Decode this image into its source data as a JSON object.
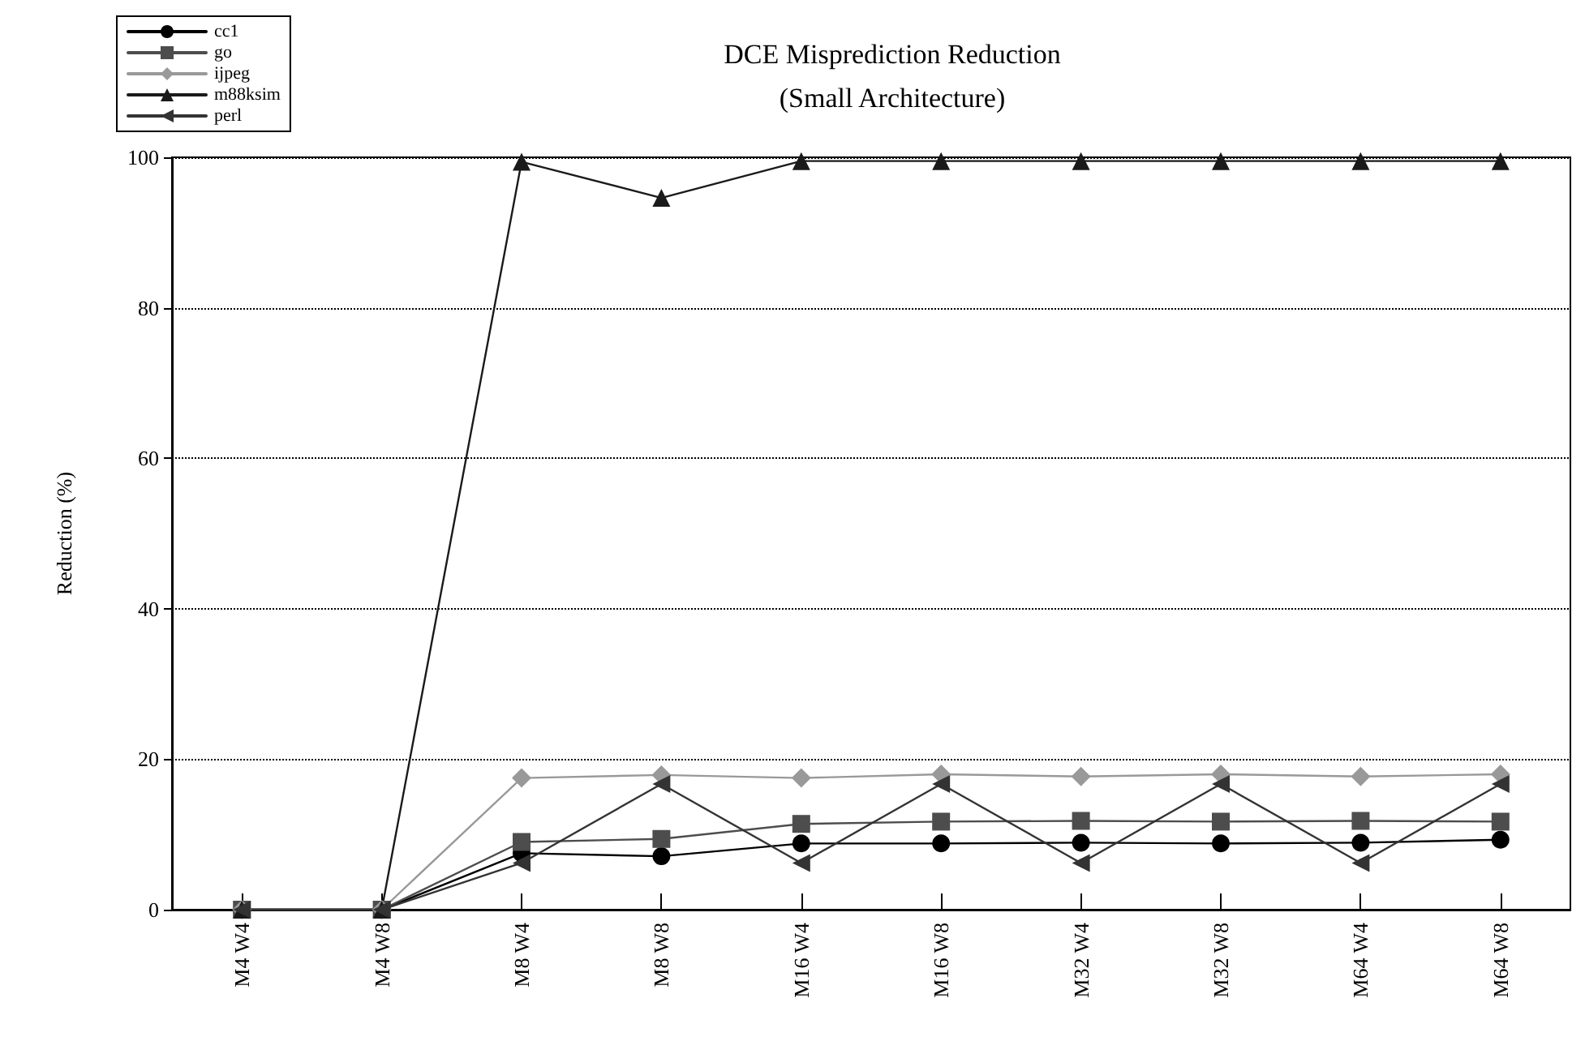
{
  "chart_data": {
    "type": "line",
    "title": "DCE Misprediction Reduction",
    "subtitle": "(Small Architecture)",
    "ylabel": "Reduction (%)",
    "categories": [
      "M4 W4",
      "M4 W8",
      "M8 W4",
      "M8 W8",
      "M16 W4",
      "M16 W8",
      "M32 W4",
      "M32 W8",
      "M64 W4",
      "M64 W8"
    ],
    "series": [
      {
        "name": "cc1",
        "color": "#000000",
        "marker": "circle",
        "values": [
          0,
          0,
          7.5,
          7.1,
          8.8,
          8.8,
          8.9,
          8.8,
          8.9,
          9.3
        ]
      },
      {
        "name": "go",
        "color": "#4d4d4d",
        "marker": "square",
        "values": [
          0,
          0,
          9.0,
          9.4,
          11.4,
          11.7,
          11.8,
          11.7,
          11.8,
          11.7
        ]
      },
      {
        "name": "ijpeg",
        "color": "#999999",
        "marker": "diamond",
        "values": [
          0,
          0,
          17.5,
          17.9,
          17.5,
          18.0,
          17.7,
          18.0,
          17.7,
          18.0
        ]
      },
      {
        "name": "m88ksim",
        "color": "#1a1a1a",
        "marker": "triangle",
        "values": [
          0,
          0,
          99.4,
          94.6,
          99.5,
          99.5,
          99.5,
          99.5,
          99.5,
          99.5
        ]
      },
      {
        "name": "perl",
        "color": "#333333",
        "marker": "triangle",
        "values": [
          0,
          0,
          6.2,
          16.7,
          6.2,
          16.7,
          6.2,
          16.7,
          6.2,
          16.7
        ]
      }
    ],
    "ylim": [
      0,
      100
    ],
    "yticks": [
      0,
      20,
      40,
      60,
      80,
      100
    ],
    "grid": "y",
    "legend": "top left",
    "line_style": "solid"
  }
}
